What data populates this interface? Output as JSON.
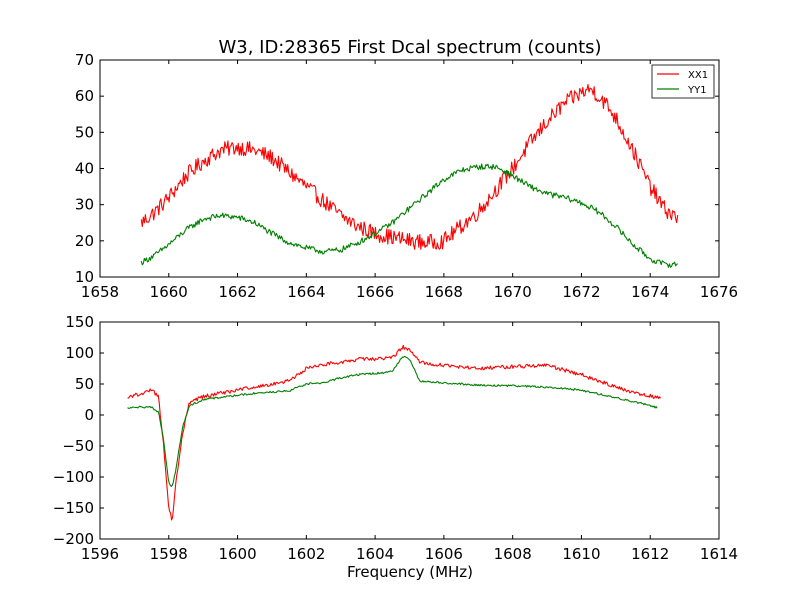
{
  "chart_data": [
    {
      "type": "line",
      "title": "W3, ID:28365 First Dcal spectrum (counts)",
      "xlabel": "",
      "ylabel": "",
      "xlim": [
        1658,
        1676
      ],
      "ylim": [
        10,
        70
      ],
      "xticks": [
        1658,
        1660,
        1662,
        1664,
        1666,
        1668,
        1670,
        1672,
        1674,
        1676
      ],
      "yticks": [
        10,
        20,
        30,
        40,
        50,
        60,
        70
      ],
      "grid": false,
      "legend": "top-right",
      "series": [
        {
          "name": "XX1",
          "color": "#ff0000",
          "noise": 2.2,
          "points": [
            [
              1659.2,
              25
            ],
            [
              1659.6,
              28
            ],
            [
              1660.0,
              32
            ],
            [
              1660.5,
              38
            ],
            [
              1661.0,
              42
            ],
            [
              1661.5,
              45
            ],
            [
              1662.0,
              46
            ],
            [
              1662.5,
              45
            ],
            [
              1663.0,
              43
            ],
            [
              1663.5,
              39
            ],
            [
              1664.0,
              35
            ],
            [
              1664.5,
              31
            ],
            [
              1665.0,
              27
            ],
            [
              1665.5,
              24
            ],
            [
              1666.0,
              22
            ],
            [
              1666.5,
              21
            ],
            [
              1667.0,
              20
            ],
            [
              1667.5,
              19.5
            ],
            [
              1668.0,
              20
            ],
            [
              1668.5,
              24
            ],
            [
              1669.0,
              28
            ],
            [
              1669.5,
              34
            ],
            [
              1670.0,
              40
            ],
            [
              1670.5,
              47
            ],
            [
              1671.0,
              53
            ],
            [
              1671.5,
              58
            ],
            [
              1672.0,
              61
            ],
            [
              1672.3,
              62
            ],
            [
              1672.7,
              58
            ],
            [
              1673.0,
              54
            ],
            [
              1673.5,
              45
            ],
            [
              1674.0,
              35
            ],
            [
              1674.4,
              29
            ],
            [
              1674.8,
              26
            ]
          ]
        },
        {
          "name": "YY1",
          "color": "#008000",
          "noise": 0.8,
          "points": [
            [
              1659.2,
              14
            ],
            [
              1659.6,
              16
            ],
            [
              1660.0,
              19
            ],
            [
              1660.5,
              23
            ],
            [
              1661.0,
              26
            ],
            [
              1661.5,
              27
            ],
            [
              1662.0,
              26.5
            ],
            [
              1662.5,
              25
            ],
            [
              1663.0,
              22
            ],
            [
              1663.5,
              19.5
            ],
            [
              1664.0,
              18
            ],
            [
              1664.5,
              17
            ],
            [
              1665.0,
              17.5
            ],
            [
              1665.5,
              19.5
            ],
            [
              1666.0,
              22
            ],
            [
              1666.5,
              25
            ],
            [
              1667.0,
              29
            ],
            [
              1667.5,
              33
            ],
            [
              1668.0,
              37
            ],
            [
              1668.5,
              39.5
            ],
            [
              1669.0,
              40.5
            ],
            [
              1669.5,
              40.5
            ],
            [
              1670.0,
              38
            ],
            [
              1670.5,
              35
            ],
            [
              1671.0,
              33
            ],
            [
              1671.5,
              32
            ],
            [
              1672.0,
              30.5
            ],
            [
              1672.5,
              28
            ],
            [
              1673.0,
              24
            ],
            [
              1673.5,
              19
            ],
            [
              1674.0,
              15
            ],
            [
              1674.4,
              13.5
            ],
            [
              1674.8,
              13.5
            ]
          ]
        }
      ]
    },
    {
      "type": "line",
      "title": "",
      "xlabel": "Frequency (MHz)",
      "ylabel": "",
      "xlim": [
        1596,
        1614
      ],
      "ylim": [
        -200,
        150
      ],
      "xticks": [
        1596,
        1598,
        1600,
        1602,
        1604,
        1606,
        1608,
        1610,
        1612,
        1614
      ],
      "yticks": [
        -200,
        -150,
        -100,
        -50,
        0,
        50,
        100,
        150
      ],
      "grid": false,
      "legend": "",
      "series": [
        {
          "name": "",
          "color": "#ff0000",
          "noise": 3,
          "points": [
            [
              1596.8,
              28
            ],
            [
              1597.2,
              35
            ],
            [
              1597.5,
              40
            ],
            [
              1597.7,
              30
            ],
            [
              1597.85,
              -50
            ],
            [
              1598.0,
              -150
            ],
            [
              1598.1,
              -170
            ],
            [
              1598.2,
              -110
            ],
            [
              1598.4,
              -30
            ],
            [
              1598.6,
              20
            ],
            [
              1599.0,
              30
            ],
            [
              1599.5,
              35
            ],
            [
              1600.0,
              40
            ],
            [
              1600.5,
              45
            ],
            [
              1601.0,
              50
            ],
            [
              1601.5,
              55
            ],
            [
              1602.0,
              75
            ],
            [
              1602.5,
              82
            ],
            [
              1603.0,
              85
            ],
            [
              1603.5,
              90
            ],
            [
              1604.0,
              90
            ],
            [
              1604.5,
              92
            ],
            [
              1604.8,
              110
            ],
            [
              1605.0,
              105
            ],
            [
              1605.3,
              85
            ],
            [
              1606.0,
              80
            ],
            [
              1607.0,
              75
            ],
            [
              1608.0,
              78
            ],
            [
              1609.0,
              80
            ],
            [
              1610.0,
              65
            ],
            [
              1611.0,
              45
            ],
            [
              1611.8,
              32
            ],
            [
              1612.3,
              28
            ]
          ]
        },
        {
          "name": "",
          "color": "#008000",
          "noise": 1.5,
          "points": [
            [
              1596.8,
              12
            ],
            [
              1597.2,
              13
            ],
            [
              1597.5,
              12
            ],
            [
              1597.7,
              5
            ],
            [
              1597.85,
              -40
            ],
            [
              1598.0,
              -110
            ],
            [
              1598.1,
              -115
            ],
            [
              1598.2,
              -90
            ],
            [
              1598.4,
              -20
            ],
            [
              1598.6,
              15
            ],
            [
              1599.0,
              25
            ],
            [
              1599.5,
              28
            ],
            [
              1600.0,
              32
            ],
            [
              1600.5,
              35
            ],
            [
              1601.0,
              37
            ],
            [
              1601.5,
              39
            ],
            [
              1602.0,
              50
            ],
            [
              1602.5,
              52
            ],
            [
              1603.0,
              60
            ],
            [
              1603.5,
              65
            ],
            [
              1604.0,
              67
            ],
            [
              1604.5,
              70
            ],
            [
              1604.8,
              95
            ],
            [
              1605.0,
              90
            ],
            [
              1605.3,
              55
            ],
            [
              1606.0,
              52
            ],
            [
              1607.0,
              48
            ],
            [
              1608.0,
              47
            ],
            [
              1609.0,
              45
            ],
            [
              1610.0,
              40
            ],
            [
              1611.0,
              28
            ],
            [
              1611.8,
              18
            ],
            [
              1612.2,
              12
            ]
          ]
        }
      ]
    }
  ]
}
